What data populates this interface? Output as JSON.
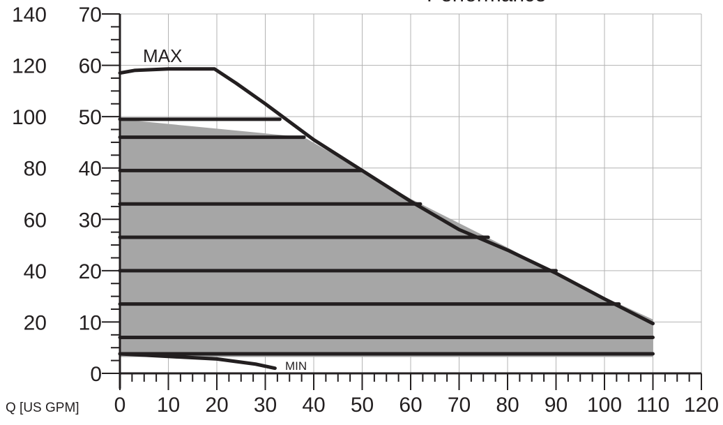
{
  "chart_data": {
    "type": "line",
    "title": "Performance",
    "x_unit_label": "Q [US GPM]",
    "xlim": [
      0,
      120
    ],
    "ylim": [
      0,
      70
    ],
    "grid": true,
    "x_ticks": [
      "0",
      "10",
      "20",
      "30",
      "40",
      "50",
      "60",
      "70",
      "80",
      "90",
      "100",
      "110",
      "120"
    ],
    "y_ticks_inner": [
      "0",
      "10",
      "20",
      "30",
      "40",
      "50",
      "60",
      "70"
    ],
    "y_ticks_outer": [
      "",
      "20",
      "40",
      "60",
      "80",
      "100",
      "120",
      "140"
    ],
    "annotations": {
      "max": "MAX",
      "min": "MIN"
    },
    "shaded_region": [
      [
        0,
        3.2
      ],
      [
        0,
        49.5
      ],
      [
        38,
        46
      ],
      [
        60,
        34
      ],
      [
        80,
        24.5
      ],
      [
        95,
        17
      ],
      [
        110,
        10.5
      ],
      [
        110,
        3.2
      ]
    ],
    "series": [
      {
        "values": [
          [
            0,
            58.5
          ],
          [
            3,
            59
          ],
          [
            10,
            59.3
          ],
          [
            19.5,
            59.3
          ],
          [
            24,
            56.5
          ],
          [
            30,
            52.5
          ],
          [
            40,
            45.5
          ],
          [
            50,
            39.5
          ],
          [
            60,
            33.5
          ],
          [
            70,
            28
          ],
          [
            80,
            24
          ],
          [
            90,
            19.5
          ],
          [
            100,
            14.5
          ],
          [
            110,
            9.7
          ]
        ]
      },
      {
        "values": [
          [
            0,
            3.8
          ],
          [
            10,
            3.3
          ],
          [
            20,
            2.8
          ],
          [
            28,
            1.8
          ],
          [
            32,
            1
          ]
        ]
      },
      {
        "values": [
          [
            0,
            49.5
          ],
          [
            33,
            49.5
          ]
        ]
      },
      {
        "values": [
          [
            0,
            46
          ],
          [
            38,
            46
          ]
        ]
      },
      {
        "values": [
          [
            0,
            39.5
          ],
          [
            50,
            39.5
          ]
        ]
      },
      {
        "values": [
          [
            0,
            33
          ],
          [
            62,
            33
          ]
        ]
      },
      {
        "values": [
          [
            0,
            26.5
          ],
          [
            76,
            26.5
          ]
        ]
      },
      {
        "values": [
          [
            0,
            20
          ],
          [
            90,
            20
          ]
        ]
      },
      {
        "values": [
          [
            0,
            13.5
          ],
          [
            103,
            13.5
          ]
        ]
      },
      {
        "values": [
          [
            0,
            7
          ],
          [
            110,
            7
          ]
        ]
      },
      {
        "values": [
          [
            0,
            3.8
          ],
          [
            110,
            3.8
          ]
        ]
      }
    ]
  }
}
